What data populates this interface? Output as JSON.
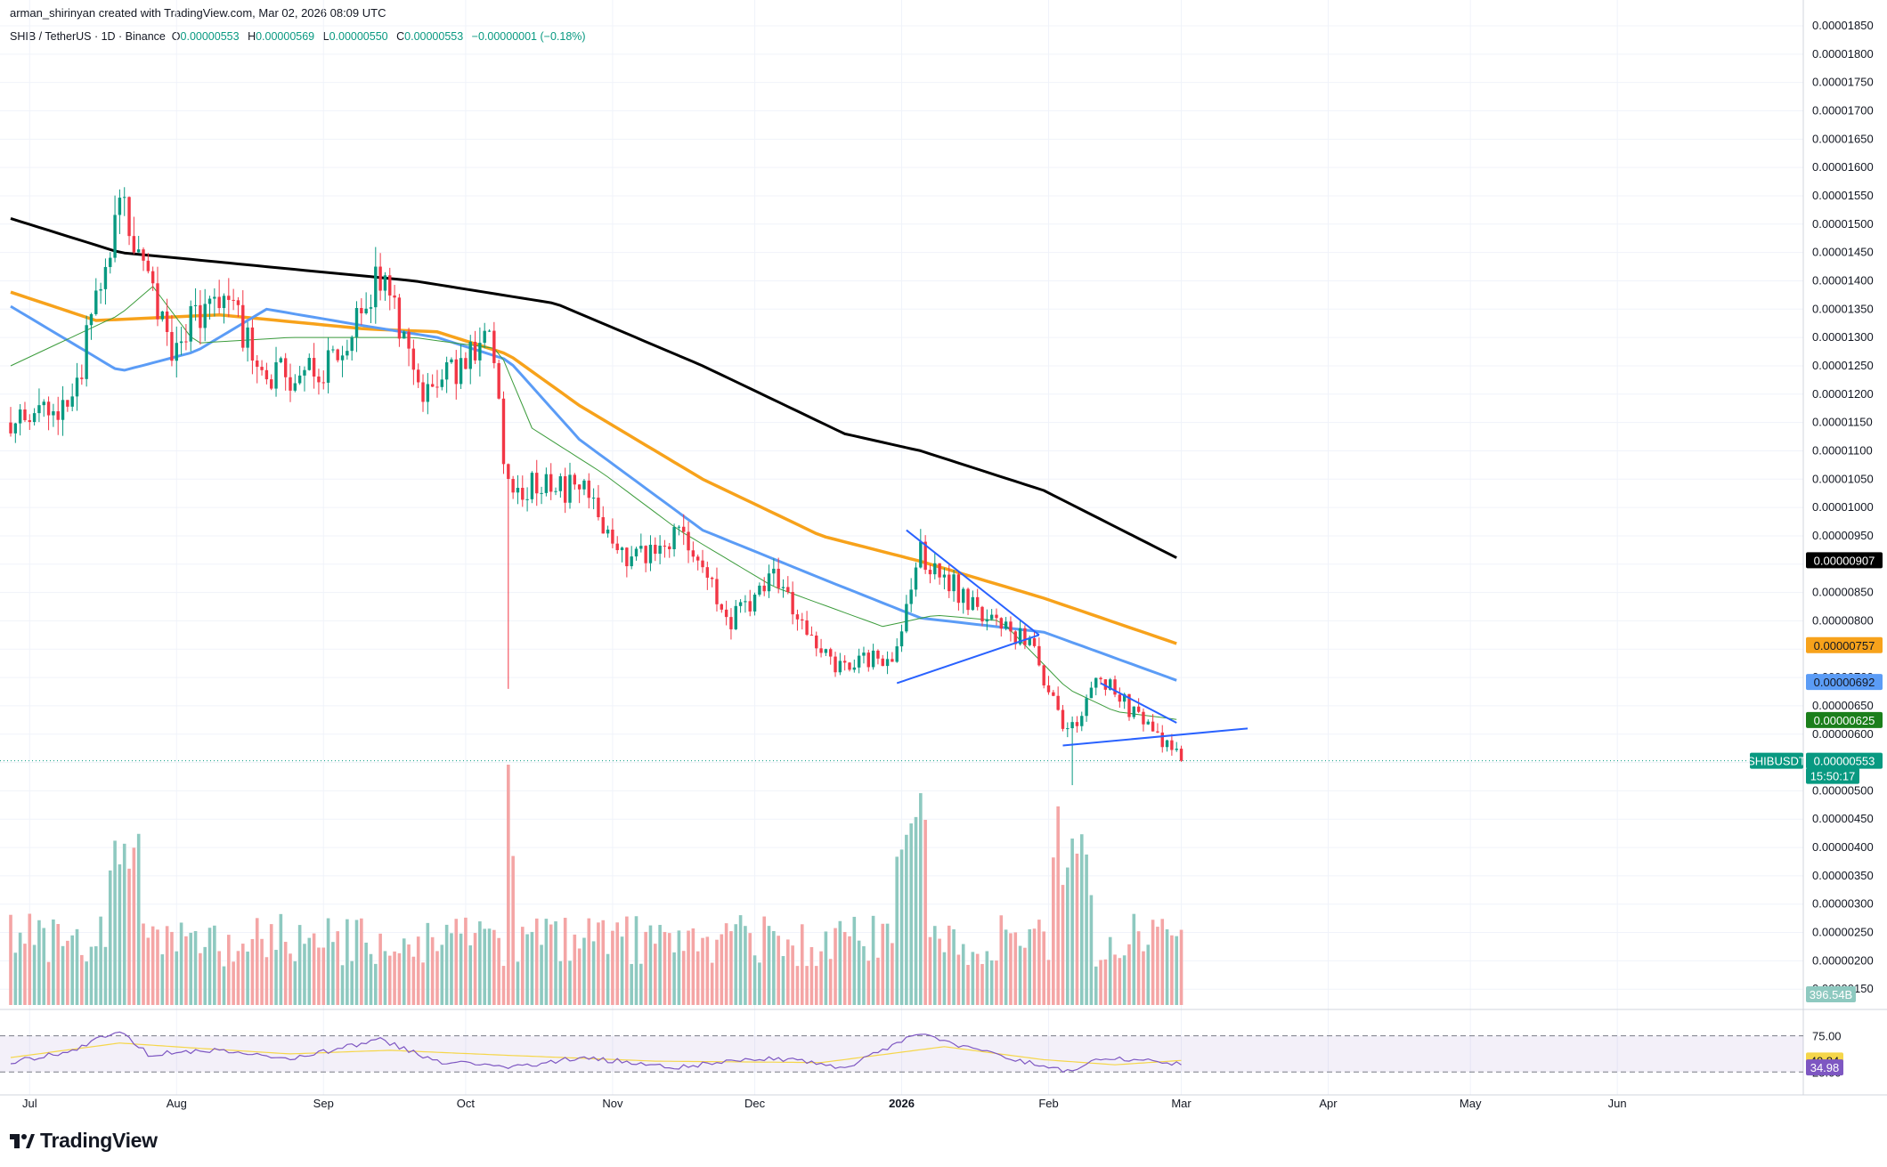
{
  "header": {
    "credit": "arman_shirinyan created with TradingView.com, Mar 02, 2026 08:09 UTC",
    "symbol_line": "SHIB / TetherUS · 1D · Binance",
    "ohlc": [
      {
        "label": "O",
        "value": "0.00000553"
      },
      {
        "label": "H",
        "value": "0.00000569"
      },
      {
        "label": "L",
        "value": "0.00000550"
      },
      {
        "label": "C",
        "value": "0.00000553"
      }
    ],
    "change": "−0.00000001 (−0.18%)"
  },
  "logo": {
    "text": "TradingView"
  },
  "colors": {
    "up": "#089981",
    "down": "#f23645",
    "vol_up": "#8ec9c0",
    "vol_down": "#f4a5a5",
    "sma200": "#000000",
    "sma100": "#f7a21b",
    "sma50": "#5b9cf6",
    "sma20": "#3c9c3c",
    "rsi_line": "#7e57c2",
    "rsi_ma": "#f5d64a",
    "trendline": "#2962ff"
  },
  "chart_data": {
    "type": "candlestick",
    "symbol": "SHIBUSDT",
    "interval": "1D",
    "y_axis": {
      "ylim": [
        1.29e-06,
        1.855e-05
      ],
      "ticks": [
        "0.00001850",
        "0.00001800",
        "0.00001750",
        "0.00001700",
        "0.00001650",
        "0.00001600",
        "0.00001550",
        "0.00001500",
        "0.00001450",
        "0.00001400",
        "0.00001350",
        "0.00001300",
        "0.00001250",
        "0.00001200",
        "0.00001150",
        "0.00001100",
        "0.00001050",
        "0.00001000",
        "0.00000950",
        "0.00000900",
        "0.00000850",
        "0.00000800",
        "0.00000750",
        "0.00000700",
        "0.00000650",
        "0.00000600",
        "0.00000550",
        "0.00000500",
        "0.00000450",
        "0.00000400",
        "0.00000350",
        "0.00000300",
        "0.00000250",
        "0.00000200",
        "0.00000150"
      ]
    },
    "x_axis": {
      "labels": [
        {
          "text": "Jul",
          "bold": false
        },
        {
          "text": "Aug",
          "bold": false
        },
        {
          "text": "Sep",
          "bold": false
        },
        {
          "text": "Oct",
          "bold": false
        },
        {
          "text": "Nov",
          "bold": false
        },
        {
          "text": "Dec",
          "bold": false
        },
        {
          "text": "2026",
          "bold": true
        },
        {
          "text": "Feb",
          "bold": false
        },
        {
          "text": "Mar",
          "bold": false
        },
        {
          "text": "Apr",
          "bold": false
        },
        {
          "text": "May",
          "bold": false
        },
        {
          "text": "Jun",
          "bold": false
        }
      ]
    },
    "key_points": [
      {
        "date": "2025-06-27",
        "close": 1.15e-05
      },
      {
        "date": "2025-07-10",
        "close": 1.19e-05
      },
      {
        "date": "2025-07-21",
        "close": 1.56e-05
      },
      {
        "date": "2025-07-23",
        "close": 1.46e-05
      },
      {
        "date": "2025-07-31",
        "close": 1.29e-05
      },
      {
        "date": "2025-08-10",
        "close": 1.38e-05
      },
      {
        "date": "2025-08-21",
        "close": 1.23e-05
      },
      {
        "date": "2025-09-03",
        "close": 1.25e-05
      },
      {
        "date": "2025-09-13",
        "close": 1.41e-05
      },
      {
        "date": "2025-09-22",
        "close": 1.2e-05
      },
      {
        "date": "2025-10-06",
        "close": 1.29e-05
      },
      {
        "date": "2025-10-10",
        "close": 1.04e-05
      },
      {
        "date": "2025-10-26",
        "close": 1.03e-05
      },
      {
        "date": "2025-11-04",
        "close": 9e-06
      },
      {
        "date": "2025-11-15",
        "close": 9.5e-06
      },
      {
        "date": "2025-11-26",
        "close": 8e-06
      },
      {
        "date": "2025-12-05",
        "close": 8.8e-06
      },
      {
        "date": "2025-12-18",
        "close": 7.2e-06
      },
      {
        "date": "2025-12-31",
        "close": 7.4e-06
      },
      {
        "date": "2026-01-05",
        "close": 9.2e-06
      },
      {
        "date": "2026-01-18",
        "close": 8.1e-06
      },
      {
        "date": "2026-01-28",
        "close": 7.6e-06
      },
      {
        "date": "2026-02-05",
        "close": 6e-06
      },
      {
        "date": "2026-02-12",
        "close": 7e-06
      },
      {
        "date": "2026-02-23",
        "close": 6e-06
      },
      {
        "date": "2026-03-01",
        "close": 5.53e-06
      }
    ],
    "special_wicks": [
      {
        "date": "2025-10-10",
        "low": 6.8e-06
      },
      {
        "date": "2026-02-06",
        "low": 5.1e-06
      }
    ],
    "moving_averages": [
      {
        "id": "sma200",
        "points": [
          [
            "2025-06-27",
            1.51e-05
          ],
          [
            "2025-07-20",
            1.45e-05
          ],
          [
            "2025-08-20",
            1.425e-05
          ],
          [
            "2025-09-20",
            1.4e-05
          ],
          [
            "2025-10-20",
            1.36e-05
          ],
          [
            "2025-11-20",
            1.25e-05
          ],
          [
            "2025-12-20",
            1.13e-05
          ],
          [
            "2026-01-05",
            1.1e-05
          ],
          [
            "2026-01-31",
            1.03e-05
          ],
          [
            "2026-03-01",
            9.07e-06
          ]
        ]
      },
      {
        "id": "sma100",
        "points": [
          [
            "2025-06-27",
            1.38e-05
          ],
          [
            "2025-07-15",
            1.33e-05
          ],
          [
            "2025-08-10",
            1.34e-05
          ],
          [
            "2025-09-10",
            1.315e-05
          ],
          [
            "2025-09-25",
            1.31e-05
          ],
          [
            "2025-10-10",
            1.27e-05
          ],
          [
            "2025-10-25",
            1.18e-05
          ],
          [
            "2025-11-20",
            1.05e-05
          ],
          [
            "2025-12-15",
            9.5e-06
          ],
          [
            "2026-01-05",
            9.05e-06
          ],
          [
            "2026-01-31",
            8.4e-06
          ],
          [
            "2026-03-01",
            7.57e-06
          ]
        ]
      },
      {
        "id": "sma50",
        "points": [
          [
            "2025-06-27",
            1.355e-05
          ],
          [
            "2025-07-20",
            1.24e-05
          ],
          [
            "2025-08-05",
            1.275e-05
          ],
          [
            "2025-08-20",
            1.35e-05
          ],
          [
            "2025-09-10",
            1.32e-05
          ],
          [
            "2025-09-25",
            1.3e-05
          ],
          [
            "2025-10-10",
            1.26e-05
          ],
          [
            "2025-10-25",
            1.12e-05
          ],
          [
            "2025-11-20",
            9.6e-06
          ],
          [
            "2025-12-15",
            8.75e-06
          ],
          [
            "2026-01-05",
            8.05e-06
          ],
          [
            "2026-01-31",
            7.8e-06
          ],
          [
            "2026-03-01",
            6.92e-06
          ]
        ]
      },
      {
        "id": "sma20",
        "points": [
          [
            "2025-06-27",
            1.25e-05
          ],
          [
            "2025-07-20",
            1.34e-05
          ],
          [
            "2025-07-27",
            1.39e-05
          ],
          [
            "2025-08-05",
            1.29e-05
          ],
          [
            "2025-08-25",
            1.3e-05
          ],
          [
            "2025-09-20",
            1.3e-05
          ],
          [
            "2025-10-08",
            1.28e-05
          ],
          [
            "2025-10-15",
            1.14e-05
          ],
          [
            "2025-10-30",
            1.06e-05
          ],
          [
            "2025-11-15",
            9.6e-06
          ],
          [
            "2025-12-05",
            8.6e-06
          ],
          [
            "2025-12-28",
            7.9e-06
          ],
          [
            "2026-01-08",
            8.1e-06
          ],
          [
            "2026-01-22",
            8e-06
          ],
          [
            "2026-02-05",
            6.8e-06
          ],
          [
            "2026-02-15",
            6.4e-06
          ],
          [
            "2026-03-01",
            6.25e-06
          ]
        ]
      }
    ],
    "trendlines": [
      [
        "2026-01-02",
        9.6e-06,
        "2026-01-30",
        7.75e-06
      ],
      [
        "2025-12-31",
        6.9e-06,
        "2026-01-30",
        7.75e-06
      ],
      [
        "2026-02-12",
        6.9e-06,
        "2026-02-28",
        6.2e-06
      ],
      [
        "2026-02-04",
        5.8e-06,
        "2026-03-15",
        6.1e-06
      ]
    ],
    "price_labels": [
      {
        "text": "0.00000907",
        "bg": "#000000",
        "fg": "#ffffff",
        "value": 9.07e-06
      },
      {
        "text": "0.00000757",
        "bg": "#f7a21b",
        "fg": "#131722",
        "value": 7.57e-06
      },
      {
        "text": "0.00000692",
        "bg": "#5b9cf6",
        "fg": "#131722",
        "value": 6.92e-06
      },
      {
        "text": "0.00000625",
        "bg": "#1b7f1b",
        "fg": "#ffffff",
        "value": 6.25e-06
      }
    ],
    "last_price": {
      "symbol": "SHIBUSDT",
      "value": "0.00000553",
      "countdown": "15:50:17",
      "price": 5.53e-06
    },
    "volume": {
      "last_label": "396.54B",
      "peak_date": "2025-10-10"
    },
    "rsi": {
      "levels": [
        "75.00",
        "25.00"
      ],
      "value": "34.98",
      "ma_value": "40.84",
      "key_points": [
        [
          "2025-06-27",
          38
        ],
        [
          "2025-07-10",
          55
        ],
        [
          "2025-07-20",
          82
        ],
        [
          "2025-07-26",
          50
        ],
        [
          "2025-08-10",
          55
        ],
        [
          "2025-08-25",
          42
        ],
        [
          "2025-09-13",
          70
        ],
        [
          "2025-09-25",
          40
        ],
        [
          "2025-10-10",
          30
        ],
        [
          "2025-10-25",
          45
        ],
        [
          "2025-11-15",
          32
        ],
        [
          "2025-12-05",
          45
        ],
        [
          "2025-12-20",
          30
        ],
        [
          "2026-01-04",
          78
        ],
        [
          "2026-01-20",
          50
        ],
        [
          "2026-02-05",
          25
        ],
        [
          "2026-02-12",
          45
        ],
        [
          "2026-02-22",
          40
        ],
        [
          "2026-03-01",
          35
        ]
      ],
      "ma_points": [
        [
          "2025-06-27",
          45
        ],
        [
          "2025-07-20",
          65
        ],
        [
          "2025-08-05",
          58
        ],
        [
          "2025-08-25",
          50
        ],
        [
          "2025-09-15",
          55
        ],
        [
          "2025-10-10",
          48
        ],
        [
          "2025-11-10",
          40
        ],
        [
          "2025-12-15",
          38
        ],
        [
          "2026-01-10",
          60
        ],
        [
          "2026-01-31",
          42
        ],
        [
          "2026-02-15",
          35
        ],
        [
          "2026-03-01",
          41
        ]
      ]
    }
  }
}
